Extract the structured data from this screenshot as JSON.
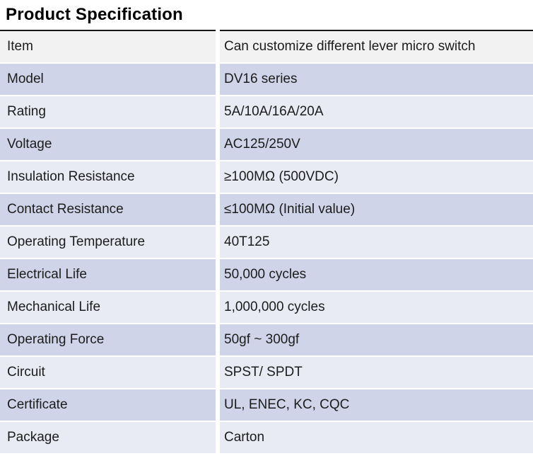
{
  "page": {
    "title": "Product Specification"
  },
  "theme": {
    "row_gray": "#f2f2f2",
    "row_dark": "#d0d4e8",
    "row_light": "#e9ebf4",
    "top_border": "#141414",
    "text": "#1c1c1c",
    "title_color": "#000000",
    "background": "#ffffff"
  },
  "table": {
    "columns": [
      "label",
      "value"
    ],
    "rows": [
      {
        "label": "Item",
        "value": "Can customize different lever micro switch"
      },
      {
        "label": "Model",
        "value": "DV16 series"
      },
      {
        "label": "Rating",
        "value": "5A/10A/16A/20A"
      },
      {
        "label": "Voltage",
        "value": "AC125/250V"
      },
      {
        "label": "Insulation Resistance",
        "value": "≥100MΩ (500VDC)"
      },
      {
        "label": "Contact Resistance",
        "value": "≤100MΩ (Initial value)"
      },
      {
        "label": "Operating Temperature",
        "value": "40T125"
      },
      {
        "label": "Electrical Life",
        "value": "50,000 cycles"
      },
      {
        "label": "Mechanical Life",
        "value": "1,000,000 cycles"
      },
      {
        "label": "Operating Force",
        "value": "50gf ~ 300gf"
      },
      {
        "label": "Circuit",
        "value": "SPST/ SPDT"
      },
      {
        "label": "Certificate",
        "value": "UL, ENEC, KC, CQC"
      },
      {
        "label": "Package",
        "value": "Carton"
      }
    ]
  }
}
